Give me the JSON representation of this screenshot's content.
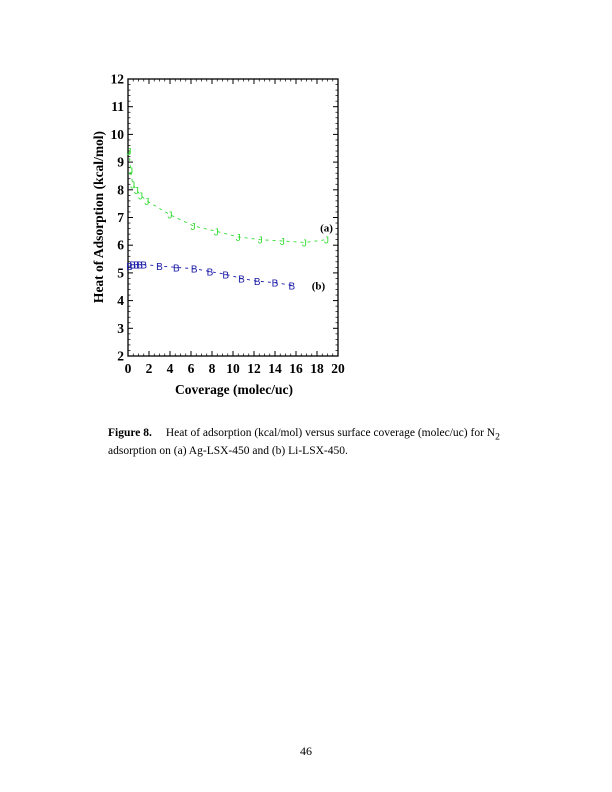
{
  "chart_data": {
    "type": "scatter",
    "title": "",
    "xlabel": "Coverage (molec/uc)",
    "ylabel": "Heat of Adsorption (kcal/mol)",
    "xlim": [
      0,
      20
    ],
    "ylim": [
      2,
      12
    ],
    "x_ticks": [
      0,
      2,
      4,
      6,
      8,
      10,
      12,
      14,
      16,
      18,
      20
    ],
    "y_ticks": [
      2,
      3,
      4,
      5,
      6,
      7,
      8,
      9,
      10,
      11,
      12
    ],
    "grid": false,
    "series": [
      {
        "name": "(a)",
        "marker": "J",
        "color": "#33dd33",
        "x": [
          0.1,
          0.25,
          0.45,
          0.8,
          1.2,
          1.8,
          4.0,
          6.2,
          8.4,
          10.5,
          12.6,
          14.7,
          16.8,
          18.9
        ],
        "y": [
          9.4,
          8.7,
          8.2,
          8.0,
          7.8,
          7.6,
          7.1,
          6.7,
          6.5,
          6.3,
          6.2,
          6.15,
          6.1,
          6.2
        ]
      },
      {
        "name": "(b)",
        "marker": "B",
        "color": "#1a1aa8",
        "x": [
          0.15,
          0.45,
          0.8,
          1.1,
          1.5,
          3.0,
          4.6,
          6.3,
          7.8,
          9.3,
          10.8,
          12.3,
          14.0,
          15.6
        ],
        "y": [
          5.25,
          5.3,
          5.3,
          5.3,
          5.3,
          5.25,
          5.2,
          5.15,
          5.05,
          4.95,
          4.8,
          4.7,
          4.65,
          4.55
        ]
      }
    ],
    "annotations": [
      {
        "text": "(a)",
        "x": 18.3,
        "y": 6.5
      },
      {
        "text": "(b)",
        "x": 17.5,
        "y": 4.4
      }
    ]
  },
  "caption": {
    "label": "Figure 8.",
    "text_before_sub": "Heat of adsorption (kcal/mol) versus surface coverage (molec/uc) for N",
    "subscript": "2",
    "text_after_sub": " adsorption on (a) Ag-LSX-450 and (b) Li-LSX-450."
  },
  "page_number": "46"
}
